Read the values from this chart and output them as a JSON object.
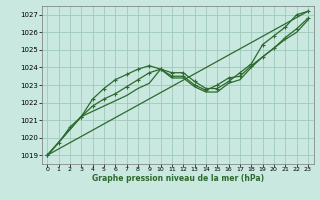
{
  "title": "Graphe pression niveau de la mer (hPa)",
  "bg_color": "#c8e8e0",
  "grid_color": "#a0c8bc",
  "line_color": "#2d6a2d",
  "xlim": [
    -0.5,
    23.5
  ],
  "ylim": [
    1018.5,
    1027.5
  ],
  "yticks": [
    1019,
    1020,
    1021,
    1022,
    1023,
    1024,
    1025,
    1026,
    1027
  ],
  "xticks": [
    0,
    1,
    2,
    3,
    4,
    5,
    6,
    7,
    8,
    9,
    10,
    11,
    12,
    13,
    14,
    15,
    16,
    17,
    18,
    19,
    20,
    21,
    22,
    23
  ],
  "series": [
    {
      "x": [
        0,
        1,
        2,
        3,
        4,
        5,
        6,
        7,
        8,
        9,
        10,
        11,
        12,
        13,
        14,
        15,
        16,
        17,
        18,
        19,
        20,
        21,
        22,
        23
      ],
      "y": [
        1019.0,
        1019.7,
        1020.6,
        1021.2,
        1022.2,
        1022.8,
        1023.3,
        1023.6,
        1023.9,
        1024.1,
        1023.9,
        1023.7,
        1023.7,
        1023.2,
        1022.8,
        1022.8,
        1023.2,
        1023.7,
        1024.2,
        1025.3,
        1025.8,
        1026.3,
        1027.0,
        1027.2
      ],
      "marker": true,
      "lw": 0.9
    },
    {
      "x": [
        0,
        3,
        4,
        5,
        6,
        7,
        8,
        9,
        10,
        11,
        12,
        13,
        14,
        15,
        16,
        17,
        18,
        19,
        20,
        21,
        22,
        23
      ],
      "y": [
        1019.0,
        1021.2,
        1021.8,
        1022.2,
        1022.5,
        1022.9,
        1023.3,
        1023.7,
        1023.9,
        1023.5,
        1023.5,
        1023.0,
        1022.7,
        1023.0,
        1023.4,
        1023.5,
        1024.1,
        1024.6,
        1025.1,
        1025.7,
        1026.2,
        1026.8
      ],
      "marker": true,
      "lw": 0.9
    },
    {
      "x": [
        0,
        3,
        4,
        5,
        6,
        7,
        8,
        9,
        10,
        11,
        12,
        13,
        14,
        15,
        16,
        17,
        18,
        19,
        20,
        21,
        22,
        23
      ],
      "y": [
        1019.0,
        1021.2,
        1021.5,
        1021.8,
        1022.1,
        1022.4,
        1022.8,
        1023.1,
        1023.9,
        1023.4,
        1023.4,
        1022.9,
        1022.6,
        1022.6,
        1023.1,
        1023.3,
        1024.0,
        1024.6,
        1025.1,
        1025.6,
        1026.0,
        1026.7
      ],
      "marker": false,
      "lw": 0.9
    },
    {
      "x": [
        0,
        23
      ],
      "y": [
        1019.0,
        1027.2
      ],
      "marker": false,
      "lw": 0.9
    }
  ]
}
